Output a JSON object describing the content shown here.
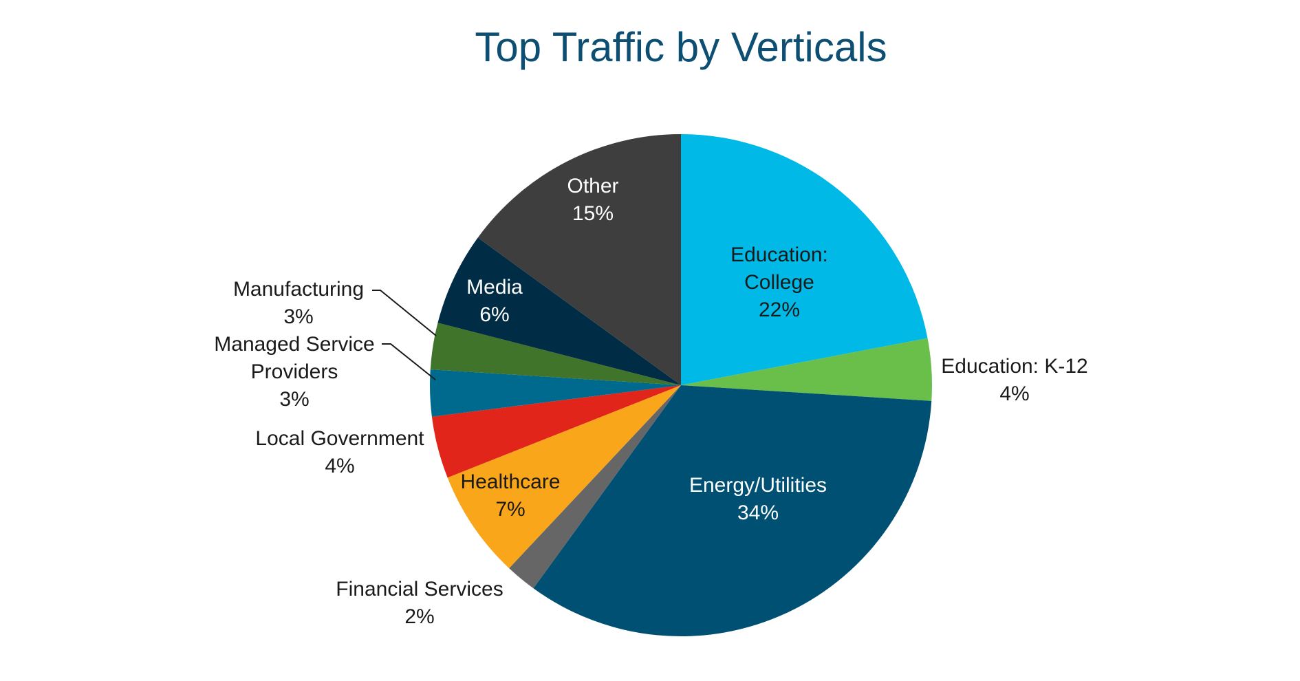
{
  "chart_data": {
    "type": "pie",
    "title": "Top Traffic by Verticals",
    "slices": [
      {
        "name": "Education: College",
        "label_lines": [
          "Education:",
          "College"
        ],
        "value": 22,
        "value_label": "22%",
        "color": "#00b9e6",
        "label_color": "dark"
      },
      {
        "name": "Education: K-12",
        "label_lines": [
          "Education: K-12"
        ],
        "value": 4,
        "value_label": "4%",
        "color": "#6abf4b",
        "label_color": "dark"
      },
      {
        "name": "Energy/Utilities",
        "label_lines": [
          "Energy/Utilities"
        ],
        "value": 34,
        "value_label": "34%",
        "color": "#005073",
        "label_color": "light"
      },
      {
        "name": "Financial Services",
        "label_lines": [
          "Financial Services"
        ],
        "value": 2,
        "value_label": "2%",
        "color": "#666666",
        "label_color": "dark"
      },
      {
        "name": "Healthcare",
        "label_lines": [
          "Healthcare"
        ],
        "value": 7,
        "value_label": "7%",
        "color": "#f9a61a",
        "label_color": "dark"
      },
      {
        "name": "Local Government",
        "label_lines": [
          "Local Government"
        ],
        "value": 4,
        "value_label": "4%",
        "color": "#e1251b",
        "label_color": "dark"
      },
      {
        "name": "Managed Service Providers",
        "label_lines": [
          "Managed Service",
          "Providers"
        ],
        "value": 3,
        "value_label": "3%",
        "color": "#006a8e",
        "label_color": "dark"
      },
      {
        "name": "Manufacturing",
        "label_lines": [
          "Manufacturing"
        ],
        "value": 3,
        "value_label": "3%",
        "color": "#41742b",
        "label_color": "dark"
      },
      {
        "name": "Media",
        "label_lines": [
          "Media"
        ],
        "value": 6,
        "value_label": "6%",
        "color": "#002d45",
        "label_color": "light"
      },
      {
        "name": "Other",
        "label_lines": [
          "Other"
        ],
        "value": 15,
        "value_label": "15%",
        "color": "#3e3e3e",
        "label_color": "light"
      }
    ]
  }
}
